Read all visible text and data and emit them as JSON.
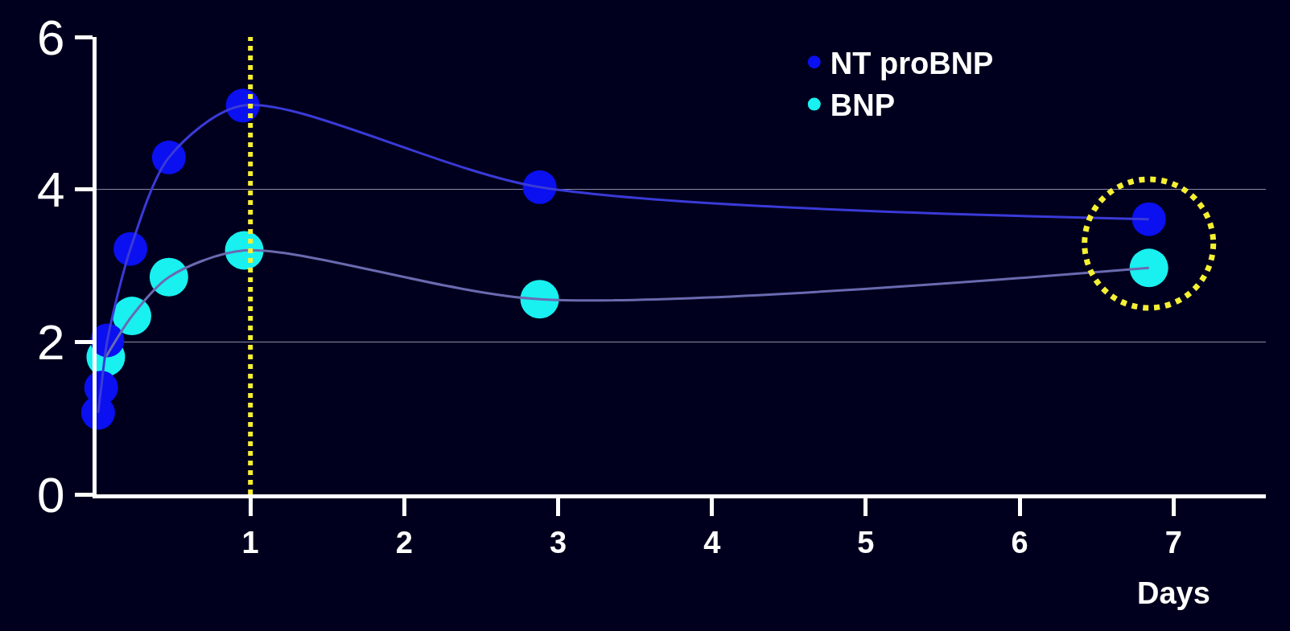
{
  "chart_data": {
    "type": "scatter",
    "xlabel": "Days",
    "xlim": [
      0,
      7.6
    ],
    "ylim": [
      0,
      6
    ],
    "xticks": [
      1,
      2,
      3,
      4,
      5,
      6,
      7
    ],
    "yticks": [
      0,
      2,
      4,
      6
    ],
    "grid": "y",
    "legend": "top right",
    "series": [
      {
        "marker": "circle",
        "name": "BNP",
        "color": "#19f0f0",
        "x": [
          0.06,
          0.23,
          0.47,
          0.96,
          2.88,
          6.84
        ],
        "values": [
          1.8,
          2.34,
          2.85,
          3.2,
          2.56,
          2.97
        ]
      },
      {
        "marker": "circle",
        "name": "NT proBNP",
        "color": "#0a10f0",
        "x": [
          0.01,
          0.03,
          0.07,
          0.22,
          0.47,
          0.95,
          2.88,
          6.84
        ],
        "values": [
          1.07,
          1.4,
          2.02,
          3.22,
          4.42,
          5.1,
          4.03,
          3.61
        ]
      },
      {
        "type": "line",
        "marker": "none",
        "color": "#6a6ab0",
        "x": [
          0.06,
          0.23,
          0.47,
          0.96,
          2.88,
          6.84
        ],
        "values": [
          1.8,
          2.34,
          2.85,
          3.2,
          2.56,
          2.97
        ]
      },
      {
        "type": "line",
        "marker": "none",
        "color": "#3a3ad8",
        "x": [
          0.01,
          0.03,
          0.07,
          0.22,
          0.47,
          0.95,
          2.88,
          6.84
        ],
        "values": [
          1.07,
          1.4,
          2.02,
          3.22,
          4.42,
          5.1,
          4.03,
          3.61
        ]
      }
    ],
    "ref_lines": [
      {
        "axis": "x",
        "value": 1,
        "color": "#f5f032",
        "line_style": "dotted"
      }
    ]
  }
}
